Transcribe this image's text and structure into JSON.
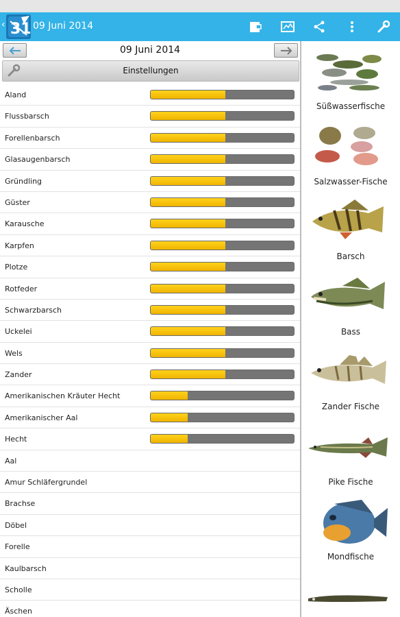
{
  "actionbar": {
    "back_glyph": "‹",
    "title": "09 Juni 2014",
    "icons": [
      "app-logo-icon",
      "share-to-calendar-icon",
      "map-icon",
      "share-icon",
      "overflow-menu-icon",
      "wrench-icon"
    ]
  },
  "datebar": {
    "date": "09 Juni 2014",
    "prev_icon": "arrow-left-icon",
    "next_icon": "arrow-right-icon"
  },
  "settings": {
    "label": "Einstellungen",
    "icon": "wrench-icon"
  },
  "colors": {
    "accent": "#33b3e8",
    "bar_fill": "#f5c400",
    "bar_track": "#757575"
  },
  "fish_list": [
    {
      "name": "Aland",
      "activity": 0.52
    },
    {
      "name": "Flussbarsch",
      "activity": 0.52
    },
    {
      "name": "Forellenbarsch",
      "activity": 0.52
    },
    {
      "name": "Glasaugenbarsch",
      "activity": 0.52
    },
    {
      "name": "Gründling",
      "activity": 0.52
    },
    {
      "name": "Güster",
      "activity": 0.52
    },
    {
      "name": "Karausche",
      "activity": 0.52
    },
    {
      "name": "Karpfen",
      "activity": 0.52
    },
    {
      "name": "Plotze",
      "activity": 0.52
    },
    {
      "name": "Rotfeder",
      "activity": 0.52
    },
    {
      "name": "Schwarzbarsch",
      "activity": 0.52
    },
    {
      "name": "Uckelei",
      "activity": 0.52
    },
    {
      "name": "Wels",
      "activity": 0.52
    },
    {
      "name": "Zander",
      "activity": 0.52
    },
    {
      "name": "Amerikanischen Kräuter Hecht",
      "activity": 0.26
    },
    {
      "name": "Amerikanischer Aal",
      "activity": 0.26
    },
    {
      "name": "Hecht",
      "activity": 0.26
    },
    {
      "name": "Aal",
      "activity": null
    },
    {
      "name": "Amur Schläfergrundel",
      "activity": null
    },
    {
      "name": "Brachse",
      "activity": null
    },
    {
      "name": "Döbel",
      "activity": null
    },
    {
      "name": "Forelle",
      "activity": null
    },
    {
      "name": "Kaulbarsch",
      "activity": null
    },
    {
      "name": "Scholle",
      "activity": null
    },
    {
      "name": "Äschen",
      "activity": null
    }
  ],
  "categories": [
    {
      "label": "Süßwasserfische",
      "icon": "freshwater-fish-icon"
    },
    {
      "label": "Salzwasser-Fische",
      "icon": "saltwater-fish-icon"
    },
    {
      "label": "Barsch",
      "icon": "perch-icon"
    },
    {
      "label": "Bass",
      "icon": "bass-icon"
    },
    {
      "label": "Zander Fische",
      "icon": "zander-icon"
    },
    {
      "label": "Pike Fische",
      "icon": "pike-icon"
    },
    {
      "label": "Mondfische",
      "icon": "sunfish-icon"
    },
    {
      "label": "",
      "icon": "eel-icon"
    }
  ]
}
